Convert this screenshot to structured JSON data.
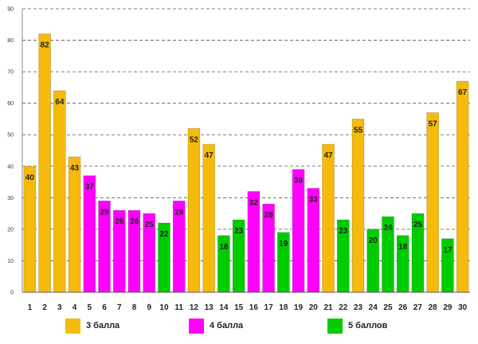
{
  "chart_data": {
    "type": "bar",
    "title": "",
    "xlabel": "",
    "ylabel": "",
    "ylim": [
      0,
      90
    ],
    "yticks": [
      0,
      10,
      20,
      30,
      40,
      50,
      60,
      70,
      80,
      90
    ],
    "grid": "horizontal-dashed",
    "categories": [
      "1",
      "2",
      "3",
      "4",
      "5",
      "6",
      "7",
      "8",
      "9",
      "10",
      "11",
      "12",
      "13",
      "14",
      "15",
      "16",
      "17",
      "18",
      "19",
      "20",
      "21",
      "22",
      "23",
      "24",
      "25",
      "26",
      "27",
      "28",
      "29",
      "30"
    ],
    "values": [
      40,
      82,
      64,
      43,
      37,
      29,
      26,
      26,
      25,
      22,
      29,
      52,
      47,
      18,
      23,
      32,
      28,
      19,
      39,
      33,
      47,
      23,
      55,
      20,
      24,
      18,
      25,
      57,
      17,
      67
    ],
    "groups": [
      0,
      0,
      0,
      0,
      1,
      1,
      1,
      1,
      1,
      2,
      1,
      0,
      0,
      2,
      2,
      1,
      1,
      2,
      1,
      1,
      0,
      2,
      0,
      2,
      2,
      2,
      2,
      0,
      2,
      0
    ],
    "series": [
      {
        "name": "3 балла",
        "color": "#F5BA0B"
      },
      {
        "name": "4 балла",
        "color": "#FF00FF"
      },
      {
        "name": "5 баллов",
        "color": "#00CC00"
      }
    ],
    "legend_position": "bottom"
  }
}
